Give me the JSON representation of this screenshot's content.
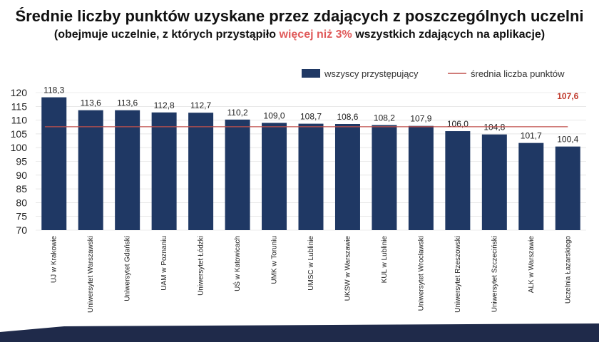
{
  "title": "Średnie liczby punktów uzyskane przez zdających z poszczególnych uczelni",
  "subtitle": {
    "before": "(obejmuje uczelnie, z których przystąpiło ",
    "highlight": "więcej niż 3%",
    "after": " wszystkich zdających na aplikacje)"
  },
  "colors": {
    "bar": "#1f3864",
    "average_line": "#c0504d",
    "average_label": "#c0392b",
    "highlight_text": "#e05a5a",
    "grid": "#d9d9d9",
    "footer": "#1f2a4a"
  },
  "chart_data": {
    "type": "bar",
    "categories": [
      "UJ w Krakowie",
      "Uniwersytet Warszawski",
      "Uniwersytet Gdański",
      "UAM w Poznaniu",
      "Uniwersytet Łódzki",
      "UŚ w Katowicach",
      "UMK w Toruniu",
      "UMSC w Lublinie",
      "UKSW w Warszawie",
      "KUL w Lublinie",
      "Uniwersytet Wrocławski",
      "Uniwersytet Rzeszowski",
      "Uniwersytet Szczeciński",
      "ALK w Warszawie",
      "Uczelnia Łazarskiego"
    ],
    "series": [
      {
        "name": "wszyscy przystępujący",
        "values": [
          118.3,
          113.6,
          113.6,
          112.8,
          112.7,
          110.2,
          109.0,
          108.7,
          108.6,
          108.2,
          107.9,
          106.0,
          104.8,
          101.7,
          100.4
        ],
        "labels": [
          "118,3",
          "113,6",
          "113,6",
          "112,8",
          "112,7",
          "110,2",
          "109,0",
          "108,7",
          "108,6",
          "108,2",
          "107,9",
          "106,0",
          "104,8",
          "101,7",
          "100,4"
        ]
      }
    ],
    "average": {
      "name": "średnia liczba punktów",
      "value": 107.6,
      "label": "107,6"
    },
    "ylim": [
      70,
      120
    ],
    "yticks": [
      70,
      75,
      80,
      85,
      90,
      95,
      100,
      105,
      110,
      115,
      120
    ],
    "grid": true,
    "legend_position": "top-right"
  }
}
